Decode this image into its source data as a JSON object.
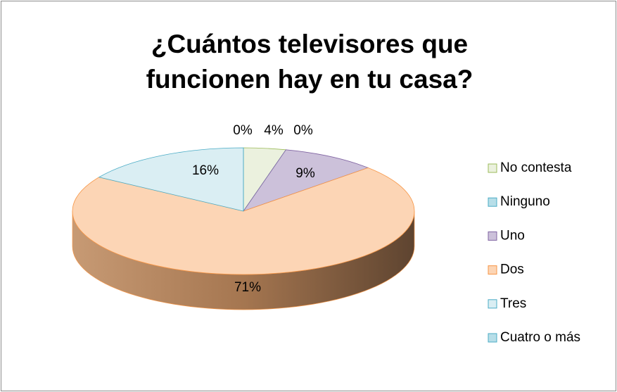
{
  "chart_data": {
    "type": "pie",
    "title": "¿Cuántos televisores que funcionen hay en tu casa?",
    "categories": [
      "No contesta",
      "Ninguno",
      "Uno",
      "Dos",
      "Tres",
      "Cuatro o más"
    ],
    "values": [
      4,
      0,
      9,
      71,
      16,
      0
    ],
    "value_labels": [
      "4%",
      "0%",
      "9%",
      "71%",
      "16%",
      "0%"
    ],
    "colors": [
      "#ebf1de",
      "#b7dee8",
      "#ccc1da",
      "#fcd5b5",
      "#daeef3",
      "#b7dee8"
    ],
    "legend": "right"
  }
}
